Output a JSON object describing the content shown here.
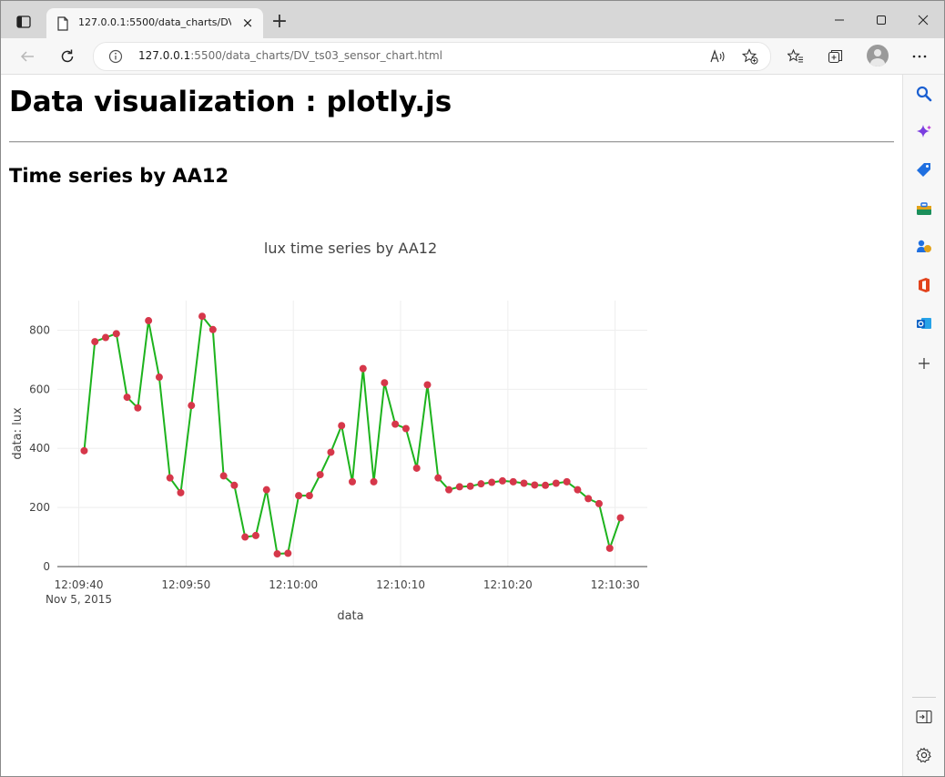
{
  "browser": {
    "tab_title": "127.0.0.1:5500/data_charts/DV_ts03_sensor_chart.html",
    "tab_close": "×",
    "new_tab": "+",
    "address": {
      "host": "127.0.0.1",
      "rest": ":5500/data_charts/DV_ts03_sensor_chart.html"
    }
  },
  "page": {
    "title": "Data visualization : plotly.js",
    "section_title": "Time series by AA12"
  },
  "colors": {
    "line": "#1db31d",
    "marker": "#d6374a",
    "grid": "#eeeeee",
    "text": "#444444"
  },
  "chart_data": {
    "type": "line",
    "title": "lux time series by AA12",
    "xlabel": "data",
    "ylabel": "data: lux",
    "x_ticks": [
      "12:09:40",
      "12:09:50",
      "12:10:00",
      "12:10:10",
      "12:10:20",
      "12:10:30"
    ],
    "x_date_label": "Nov 5, 2015",
    "y_ticks": [
      0,
      200,
      400,
      600,
      800
    ],
    "ylim": [
      0,
      900
    ],
    "xlim": [
      "12:09:38",
      "12:10:33"
    ],
    "grid": true,
    "mode": "lines+markers",
    "series": [
      {
        "x": [
          "12:09:40.5",
          "12:09:41.5",
          "12:09:42.5",
          "12:09:43.5",
          "12:09:44.5",
          "12:09:45.5",
          "12:09:46.5",
          "12:09:47.5",
          "12:09:48.5",
          "12:09:49.5",
          "12:09:50.5",
          "12:09:51.5",
          "12:09:52.5",
          "12:09:53.5",
          "12:09:54.5",
          "12:09:55.5",
          "12:09:56.5",
          "12:09:57.5",
          "12:09:58.5",
          "12:09:59.5",
          "12:10:00.5",
          "12:10:01.5",
          "12:10:02.5",
          "12:10:03.5",
          "12:10:04.5",
          "12:10:05.5",
          "12:10:06.5",
          "12:10:07.5",
          "12:10:08.5",
          "12:10:09.5",
          "12:10:10.5",
          "12:10:11.5",
          "12:10:12.5",
          "12:10:13.5",
          "12:10:14.5",
          "12:10:15.5",
          "12:10:16.5",
          "12:10:17.5",
          "12:10:18.5",
          "12:10:19.5",
          "12:10:20.5",
          "12:10:21.5",
          "12:10:22.5",
          "12:10:23.5",
          "12:10:24.5",
          "12:10:25.5",
          "12:10:26.5",
          "12:10:27.5",
          "12:10:28.5",
          "12:10:29.5",
          "12:10:30.5"
        ],
        "y": [
          392,
          761,
          775,
          788,
          573,
          537,
          832,
          641,
          300,
          250,
          545,
          847,
          802,
          307,
          275,
          100,
          105,
          260,
          43,
          45,
          240,
          240,
          311,
          387,
          477,
          287,
          670,
          287,
          622,
          482,
          467,
          333,
          615,
          300,
          260,
          270,
          272,
          280,
          285,
          290,
          287,
          282,
          276,
          275,
          282,
          287,
          260,
          230,
          213,
          62,
          165
        ]
      }
    ]
  }
}
